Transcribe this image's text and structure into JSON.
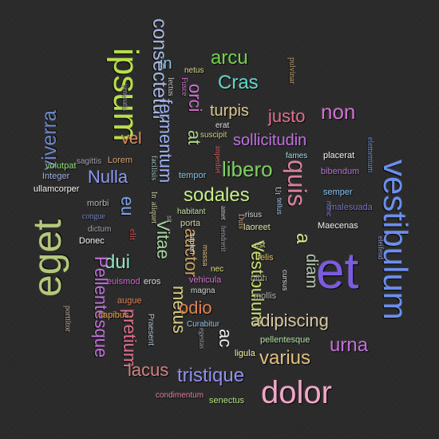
{
  "words": [
    {
      "text": "et",
      "color": "#7b5ce0"
    },
    {
      "text": "eget",
      "color": "#b4c87a"
    },
    {
      "text": "vestibulum",
      "color": "#6b8ff0"
    },
    {
      "text": "ipsum",
      "color": "#b8e04a"
    },
    {
      "text": "dolor",
      "color": "#f2a6c8"
    },
    {
      "text": "consectetur",
      "color": "#a8b8e0"
    },
    {
      "text": "viverra",
      "color": "#6d86c8"
    },
    {
      "text": "arcu",
      "color": "#74d24a"
    },
    {
      "text": "Cras",
      "color": "#62d8c8"
    },
    {
      "text": "non",
      "color": "#d070d0"
    },
    {
      "text": "justo",
      "color": "#e07090"
    },
    {
      "text": "turpis",
      "color": "#d8c890"
    },
    {
      "text": "sollicitudin",
      "color": "#c070e0"
    },
    {
      "text": "libero",
      "color": "#7ed060"
    },
    {
      "text": "quis",
      "color": "#d880a0"
    },
    {
      "text": "sodales",
      "color": "#c8ee88"
    },
    {
      "text": "Nulla",
      "color": "#8e98f0"
    },
    {
      "text": "vel",
      "color": "#e09060"
    },
    {
      "text": "fermentum",
      "color": "#9ab0f0"
    },
    {
      "text": "orci",
      "color": "#d070d0"
    },
    {
      "text": "at",
      "color": "#b0d880"
    },
    {
      "text": "in",
      "color": "#88c0e8"
    },
    {
      "text": "eu",
      "color": "#7da0e8"
    },
    {
      "text": "dui",
      "color": "#90e8c0"
    },
    {
      "text": "Pellentesque",
      "color": "#c070d8"
    },
    {
      "text": "pretium",
      "color": "#e07090"
    },
    {
      "text": "Vitae",
      "color": "#a8d8a0"
    },
    {
      "text": "auctor",
      "color": "#c8a060"
    },
    {
      "text": "metus",
      "color": "#d8d080"
    },
    {
      "text": "odio",
      "color": "#e08050"
    },
    {
      "text": "Vestibulum",
      "color": "#c8e070"
    },
    {
      "text": "adipiscing",
      "color": "#d8c8a0"
    },
    {
      "text": "diam",
      "color": "#b8c8b0"
    },
    {
      "text": "a",
      "color": "#d8e890"
    },
    {
      "text": "urna",
      "color": "#c070d8"
    },
    {
      "text": "varius",
      "color": "#e0c080"
    },
    {
      "text": "tristique",
      "color": "#9090f0"
    },
    {
      "text": "lacus",
      "color": "#d08080"
    },
    {
      "text": "ac",
      "color": "#f0f0f0"
    },
    {
      "text": "congue",
      "color": "#7080c0"
    },
    {
      "text": "morbi",
      "color": "#b0b0b0"
    },
    {
      "text": "ullamcorper",
      "color": "#f0f0f0"
    },
    {
      "text": "Integer",
      "color": "#a0b0e0"
    },
    {
      "text": "volutpat",
      "color": "#90e070"
    },
    {
      "text": "sagittis",
      "color": "#a0a0b0"
    },
    {
      "text": "Lorem",
      "color": "#d0a070"
    },
    {
      "text": "dictum",
      "color": "#a0a0b0"
    },
    {
      "text": "Donec",
      "color": "#f0f0f0"
    },
    {
      "text": "elit",
      "color": "#d05050"
    },
    {
      "text": "euismod",
      "color": "#d060d0"
    },
    {
      "text": "eros",
      "color": "#d8d8d8"
    },
    {
      "text": "augue",
      "color": "#e08050"
    },
    {
      "text": "dapibus",
      "color": "#f0a040"
    },
    {
      "text": "porttitor",
      "color": "#c0a890"
    },
    {
      "text": "Praesent",
      "color": "#b0c0d0"
    },
    {
      "text": "condimentum",
      "color": "#e080a0"
    },
    {
      "text": "senectus",
      "color": "#b0e080"
    },
    {
      "text": "ligula",
      "color": "#f0f0a0"
    },
    {
      "text": "egestas",
      "color": "#a0a0b0"
    },
    {
      "text": "Curabitur",
      "color": "#90c0e0"
    },
    {
      "text": "mollis",
      "color": "#b0b0b0"
    },
    {
      "text": "pellentesque",
      "color": "#b0e0a0"
    },
    {
      "text": "cursus",
      "color": "#d8d8d8"
    },
    {
      "text": "nibh",
      "color": "#909090"
    },
    {
      "text": "felis",
      "color": "#e0c060"
    },
    {
      "text": "est",
      "color": "#e8e8a0"
    },
    {
      "text": "Maecenas",
      "color": "#f0f0f0"
    },
    {
      "text": "eleifend",
      "color": "#90a0e0"
    },
    {
      "text": "malesuada",
      "color": "#7070c0"
    },
    {
      "text": "nunc",
      "color": "#8080d0"
    },
    {
      "text": "semper",
      "color": "#80c0f0"
    },
    {
      "text": "bibendum",
      "color": "#b070d0"
    },
    {
      "text": "placerat",
      "color": "#f0f0f0"
    },
    {
      "text": "fames",
      "color": "#a0d8e0"
    },
    {
      "text": "elementum",
      "color": "#6090d0"
    },
    {
      "text": "pulvinar",
      "color": "#c0a070"
    },
    {
      "text": "netus",
      "color": "#d8d890"
    },
    {
      "text": "Fusce",
      "color": "#d070d0"
    },
    {
      "text": "lectus",
      "color": "#d0d0d0"
    },
    {
      "text": "venenatis",
      "color": "#a0a0b0"
    },
    {
      "text": "facilisis",
      "color": "#a0c0c0"
    },
    {
      "text": "In",
      "color": "#d0d0a0"
    },
    {
      "text": "aliquet",
      "color": "#d0d0a0"
    },
    {
      "text": "sit",
      "color": "#a0a0a0"
    },
    {
      "text": "tempor",
      "color": "#80c0e0"
    },
    {
      "text": "habitant",
      "color": "#c0e0a0"
    },
    {
      "text": "porta",
      "color": "#d0d0a0"
    },
    {
      "text": "sapien",
      "color": "#f0f0f0"
    },
    {
      "text": "Duis",
      "color": "#d0a080"
    },
    {
      "text": "amet",
      "color": "#d0d0d0"
    },
    {
      "text": "hendrerit",
      "color": "#a0a0b0"
    },
    {
      "text": "vehicula",
      "color": "#d070d0"
    },
    {
      "text": "magna",
      "color": "#d0d0d0"
    },
    {
      "text": "massa",
      "color": "#e0c080"
    },
    {
      "text": "nec",
      "color": "#e0e080"
    },
    {
      "text": "imperdiet",
      "color": "#e06060"
    },
    {
      "text": "suscipit",
      "color": "#d0d080"
    },
    {
      "text": "erat",
      "color": "#e0e0e0"
    },
    {
      "text": "Ut",
      "color": "#d0d0d0"
    },
    {
      "text": "tellus",
      "color": "#a0c0e0"
    },
    {
      "text": "risus",
      "color": "#d0d0d0"
    },
    {
      "text": "laoreet",
      "color": "#e0e0a0"
    }
  ]
}
